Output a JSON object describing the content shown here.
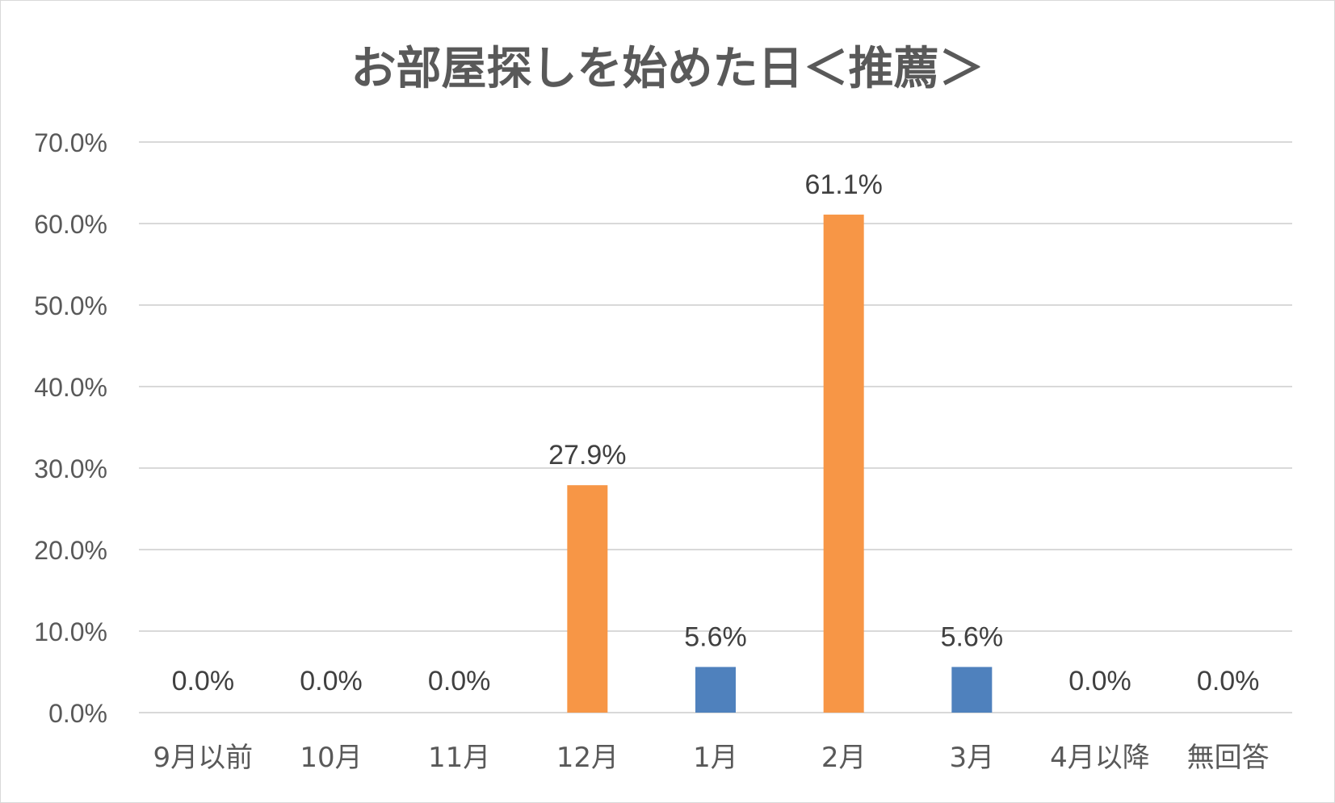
{
  "chart_data": {
    "type": "bar",
    "title": "お部屋探しを始めた日＜推薦＞",
    "xlabel": "",
    "ylabel": "",
    "categories": [
      "9月以前",
      "10月",
      "11月",
      "12月",
      "1月",
      "2月",
      "3月",
      "4月以降",
      "無回答"
    ],
    "values": [
      0.0,
      0.0,
      0.0,
      27.9,
      5.6,
      61.1,
      5.6,
      0.0,
      0.0
    ],
    "data_labels": [
      "0.0%",
      "0.0%",
      "0.0%",
      "27.9%",
      "5.6%",
      "61.1%",
      "5.6%",
      "0.0%",
      "0.0%"
    ],
    "bar_colors": [
      "#4f81bd",
      "#4f81bd",
      "#4f81bd",
      "#f79646",
      "#4f81bd",
      "#f79646",
      "#4f81bd",
      "#4f81bd",
      "#4f81bd"
    ],
    "ylim": [
      0,
      70
    ],
    "yticks": [
      0,
      10,
      20,
      30,
      40,
      50,
      60,
      70
    ],
    "ytick_labels": [
      "0.0%",
      "10.0%",
      "20.0%",
      "30.0%",
      "40.0%",
      "50.0%",
      "60.0%",
      "70.0%"
    ],
    "grid": true,
    "legend": "none"
  }
}
